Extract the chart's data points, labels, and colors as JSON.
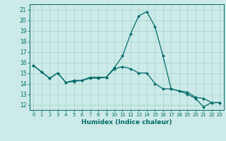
{
  "title": "",
  "xlabel": "Humidex (Indice chaleur)",
  "ylabel": "",
  "bg_color": "#cceae7",
  "grid_color": "#b0d8d4",
  "line_color": "#006b6b",
  "xlim": [
    -0.5,
    23.5
  ],
  "ylim": [
    11.5,
    21.5
  ],
  "yticks": [
    12,
    13,
    14,
    15,
    16,
    17,
    18,
    19,
    20,
    21
  ],
  "xticks": [
    0,
    1,
    2,
    3,
    4,
    5,
    6,
    7,
    8,
    9,
    10,
    11,
    12,
    13,
    14,
    15,
    16,
    17,
    18,
    19,
    20,
    21,
    22,
    23
  ],
  "series1_x": [
    0,
    1,
    2,
    3,
    4,
    5,
    6,
    7,
    8,
    9,
    10,
    11,
    12,
    13,
    14,
    15,
    16,
    17,
    18,
    19,
    20,
    21,
    22,
    23
  ],
  "series1_y": [
    15.7,
    15.1,
    14.5,
    15.0,
    14.1,
    14.2,
    14.3,
    14.5,
    14.5,
    14.6,
    15.5,
    16.6,
    18.7,
    20.4,
    20.8,
    19.4,
    16.6,
    13.5,
    13.3,
    13.2,
    12.7,
    12.6,
    12.2,
    12.2
  ],
  "series2_x": [
    0,
    1,
    2,
    3,
    4,
    5,
    6,
    7,
    8,
    9,
    10,
    11,
    12,
    13,
    14,
    15,
    16,
    17,
    18,
    19,
    20,
    21,
    22,
    23
  ],
  "series2_y": [
    15.7,
    15.1,
    14.5,
    15.0,
    14.1,
    14.3,
    14.3,
    14.6,
    14.6,
    14.6,
    15.4,
    15.6,
    15.4,
    15.0,
    15.0,
    14.0,
    13.5,
    13.5,
    13.3,
    13.0,
    12.6,
    11.8,
    12.2,
    12.2
  ]
}
